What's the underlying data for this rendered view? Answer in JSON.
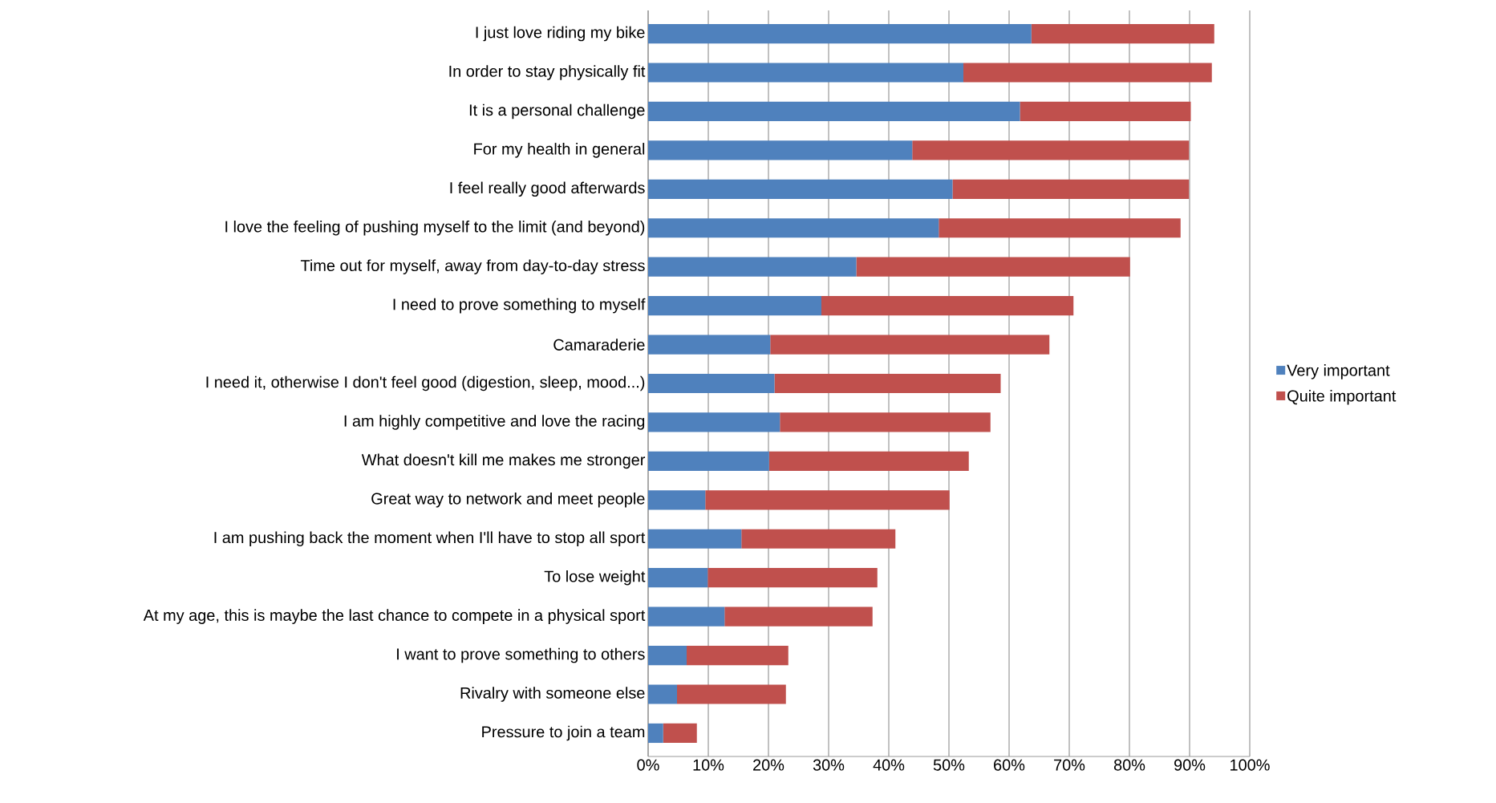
{
  "chart_data": {
    "type": "bar",
    "orientation": "horizontal",
    "stacked": true,
    "categories": [
      "I just love riding my bike",
      "In order to stay physically fit",
      "It is a personal challenge",
      "For my health in general",
      "I feel really good afterwards",
      "I love the feeling of pushing myself to the limit (and beyond)",
      "Time out for myself, away from day-to-day stress",
      "I need to prove something to myself",
      "Camaraderie",
      "I need it, otherwise I don't feel good (digestion, sleep, mood...)",
      "I am highly competitive and love the racing",
      "What doesn't kill me makes me stronger",
      "Great way to network and meet people",
      "I am pushing back the moment when I'll have to stop all sport",
      "To lose weight",
      "At my age, this is maybe the last chance to compete in a physical sport",
      "I want to prove something to others",
      "Rivalry with someone else",
      "Pressure to join a team"
    ],
    "series": [
      {
        "name": "Very important",
        "color": "#4f81bd",
        "values": [
          63.7,
          52.4,
          61.8,
          43.9,
          50.6,
          48.3,
          34.6,
          28.8,
          20.3,
          21.0,
          21.9,
          20.1,
          9.5,
          15.5,
          9.9,
          12.7,
          6.4,
          4.8,
          2.5
        ]
      },
      {
        "name": "Quite important",
        "color": "#c0504d",
        "values": [
          30.4,
          41.3,
          28.4,
          46.0,
          39.3,
          40.2,
          45.5,
          41.9,
          46.4,
          37.6,
          35.0,
          33.2,
          40.6,
          25.6,
          28.2,
          24.6,
          16.9,
          18.1,
          5.6
        ]
      }
    ],
    "xlim": [
      0,
      100
    ],
    "xticks": [
      {
        "value": 0,
        "label": "0%"
      },
      {
        "value": 10,
        "label": "10%"
      },
      {
        "value": 20,
        "label": "20%"
      },
      {
        "value": 30,
        "label": "30%"
      },
      {
        "value": 40,
        "label": "40%"
      },
      {
        "value": 50,
        "label": "50%"
      },
      {
        "value": 60,
        "label": "60%"
      },
      {
        "value": 70,
        "label": "70%"
      },
      {
        "value": 80,
        "label": "80%"
      },
      {
        "value": 90,
        "label": "90%"
      },
      {
        "value": 100,
        "label": "100%"
      }
    ],
    "grid": "x",
    "legend": "right"
  }
}
